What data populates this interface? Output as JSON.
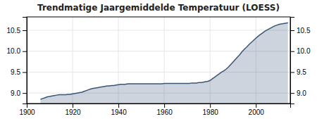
{
  "chart_data": {
    "type": "area",
    "title": "Trendmatige Jaargemiddelde Temperatuur (LOESS)",
    "color": "#3a5578",
    "grid": true,
    "xlim": [
      1900,
      2015
    ],
    "xticks": [
      1900,
      1920,
      1940,
      1960,
      1980,
      2000
    ],
    "ylim": [
      8.75,
      10.82
    ],
    "yticks": [
      {
        "value": 9.0,
        "label": "9.0"
      },
      {
        "value": 9.5,
        "label": "9.5"
      },
      {
        "value": 10.0,
        "label": "10.0"
      },
      {
        "value": 10.5,
        "label": "10.5"
      }
    ],
    "y2lim": [
      8.75,
      10.82
    ],
    "y2ticks": [
      {
        "value": 9.0,
        "label": "9.0"
      },
      {
        "value": 9.5,
        "label": "9.5"
      },
      {
        "value": 10.0,
        "label": "10.0"
      },
      {
        "value": 10.5,
        "label": "10.5"
      }
    ],
    "x": [
      1906,
      1907,
      1908,
      1909,
      1910,
      1911,
      1912,
      1913,
      1914,
      1915,
      1916,
      1917,
      1918,
      1919,
      1920,
      1921,
      1922,
      1923,
      1924,
      1925,
      1926,
      1927,
      1928,
      1929,
      1930,
      1931,
      1932,
      1933,
      1934,
      1935,
      1936,
      1937,
      1938,
      1939,
      1940,
      1941,
      1942,
      1943,
      1944,
      1945,
      1946,
      1947,
      1948,
      1949,
      1950,
      1951,
      1952,
      1953,
      1954,
      1955,
      1956,
      1957,
      1958,
      1959,
      1960,
      1961,
      1962,
      1963,
      1964,
      1965,
      1966,
      1967,
      1968,
      1969,
      1970,
      1971,
      1972,
      1973,
      1974,
      1975,
      1976,
      1977,
      1978,
      1979,
      1980,
      1981,
      1982,
      1983,
      1984,
      1985,
      1986,
      1987,
      1988,
      1989,
      1990,
      1991,
      1992,
      1993,
      1994,
      1995,
      1996,
      1997,
      1998,
      1999,
      2000,
      2001,
      2002,
      2003,
      2004,
      2005,
      2006,
      2007,
      2008,
      2009,
      2010,
      2011,
      2012,
      2013,
      2014
    ],
    "values": [
      8.85,
      8.87,
      8.89,
      8.91,
      8.92,
      8.93,
      8.94,
      8.95,
      8.96,
      8.96,
      8.96,
      8.96,
      8.97,
      8.97,
      8.98,
      8.99,
      9.0,
      9.01,
      9.02,
      9.04,
      9.06,
      9.08,
      9.1,
      9.11,
      9.12,
      9.13,
      9.14,
      9.15,
      9.16,
      9.17,
      9.17,
      9.18,
      9.18,
      9.19,
      9.2,
      9.21,
      9.21,
      9.21,
      9.22,
      9.22,
      9.22,
      9.22,
      9.22,
      9.22,
      9.22,
      9.22,
      9.22,
      9.22,
      9.22,
      9.22,
      9.22,
      9.22,
      9.22,
      9.22,
      9.23,
      9.23,
      9.23,
      9.23,
      9.23,
      9.23,
      9.23,
      9.23,
      9.23,
      9.23,
      9.23,
      9.23,
      9.24,
      9.24,
      9.24,
      9.25,
      9.25,
      9.26,
      9.27,
      9.28,
      9.3,
      9.34,
      9.38,
      9.42,
      9.46,
      9.5,
      9.53,
      9.57,
      9.62,
      9.68,
      9.74,
      9.8,
      9.86,
      9.92,
      9.99,
      10.05,
      10.1,
      10.16,
      10.21,
      10.26,
      10.31,
      10.36,
      10.4,
      10.44,
      10.48,
      10.51,
      10.54,
      10.57,
      10.6,
      10.62,
      10.64,
      10.65,
      10.66,
      10.67,
      10.68
    ]
  }
}
